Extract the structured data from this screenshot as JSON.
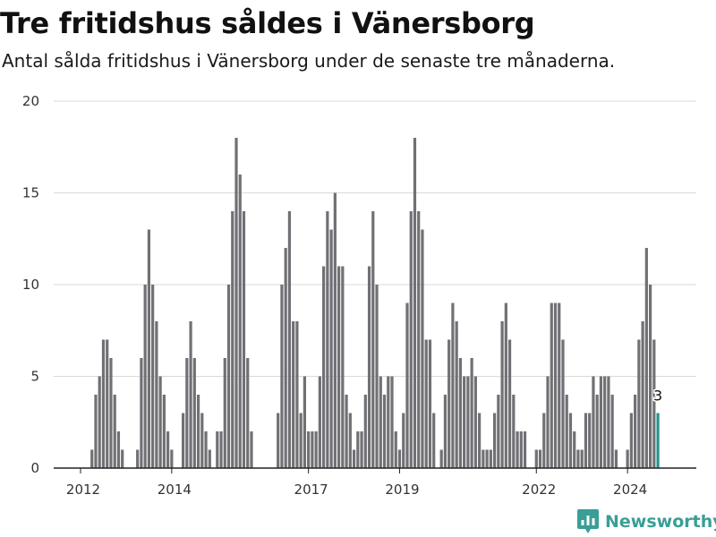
{
  "title": "Tre fritidshus såldes i Vänersborg",
  "subtitle": "Antal sålda fritidshus i Vänersborg under de senaste tre månaderna.",
  "brand": {
    "name": "Newsworthy"
  },
  "colors": {
    "bar": "#707075",
    "highlight": "#24968e",
    "grid": "#d9d9d9",
    "axis": "#222222",
    "brand": "#3a9e96"
  },
  "chart_data": {
    "type": "bar",
    "title": "Tre fritidshus såldes i Vänersborg",
    "subtitle": "Antal sålda fritidshus i Vänersborg under de senaste tre månaderna.",
    "xlabel": "",
    "ylabel": "",
    "ylim": [
      0,
      20
    ],
    "yticks": [
      0,
      5,
      10,
      15,
      20
    ],
    "grid": true,
    "x_tick_labels": [
      {
        "label": "2012",
        "index": 0
      },
      {
        "label": "2014",
        "index": 24
      },
      {
        "label": "2017",
        "index": 60
      },
      {
        "label": "2019",
        "index": 84
      },
      {
        "label": "2022",
        "index": 120
      },
      {
        "label": "2024",
        "index": 144
      }
    ],
    "values": [
      0,
      0,
      0,
      1,
      4,
      5,
      7,
      7,
      6,
      4,
      2,
      1,
      0,
      0,
      0,
      1,
      6,
      10,
      13,
      10,
      8,
      5,
      4,
      2,
      1,
      0,
      0,
      3,
      6,
      8,
      6,
      4,
      3,
      2,
      1,
      0,
      2,
      2,
      6,
      10,
      14,
      18,
      16,
      14,
      6,
      2,
      0,
      0,
      0,
      0,
      0,
      0,
      3,
      10,
      12,
      14,
      8,
      8,
      3,
      5,
      2,
      2,
      2,
      5,
      11,
      14,
      13,
      15,
      11,
      11,
      4,
      3,
      1,
      2,
      2,
      4,
      11,
      14,
      10,
      5,
      4,
      5,
      5,
      2,
      1,
      3,
      9,
      14,
      18,
      14,
      13,
      7,
      7,
      3,
      0,
      1,
      4,
      7,
      9,
      8,
      6,
      5,
      5,
      6,
      5,
      3,
      1,
      1,
      1,
      3,
      4,
      8,
      9,
      7,
      4,
      2,
      2,
      2,
      0,
      0,
      1,
      1,
      3,
      5,
      9,
      9,
      9,
      7,
      4,
      3,
      2,
      1,
      1,
      3,
      3,
      5,
      4,
      5,
      5,
      5,
      4,
      1,
      0,
      0,
      1,
      3,
      4,
      7,
      8,
      12,
      10,
      7,
      3
    ],
    "highlight_index": 152,
    "highlight_label": "3"
  }
}
